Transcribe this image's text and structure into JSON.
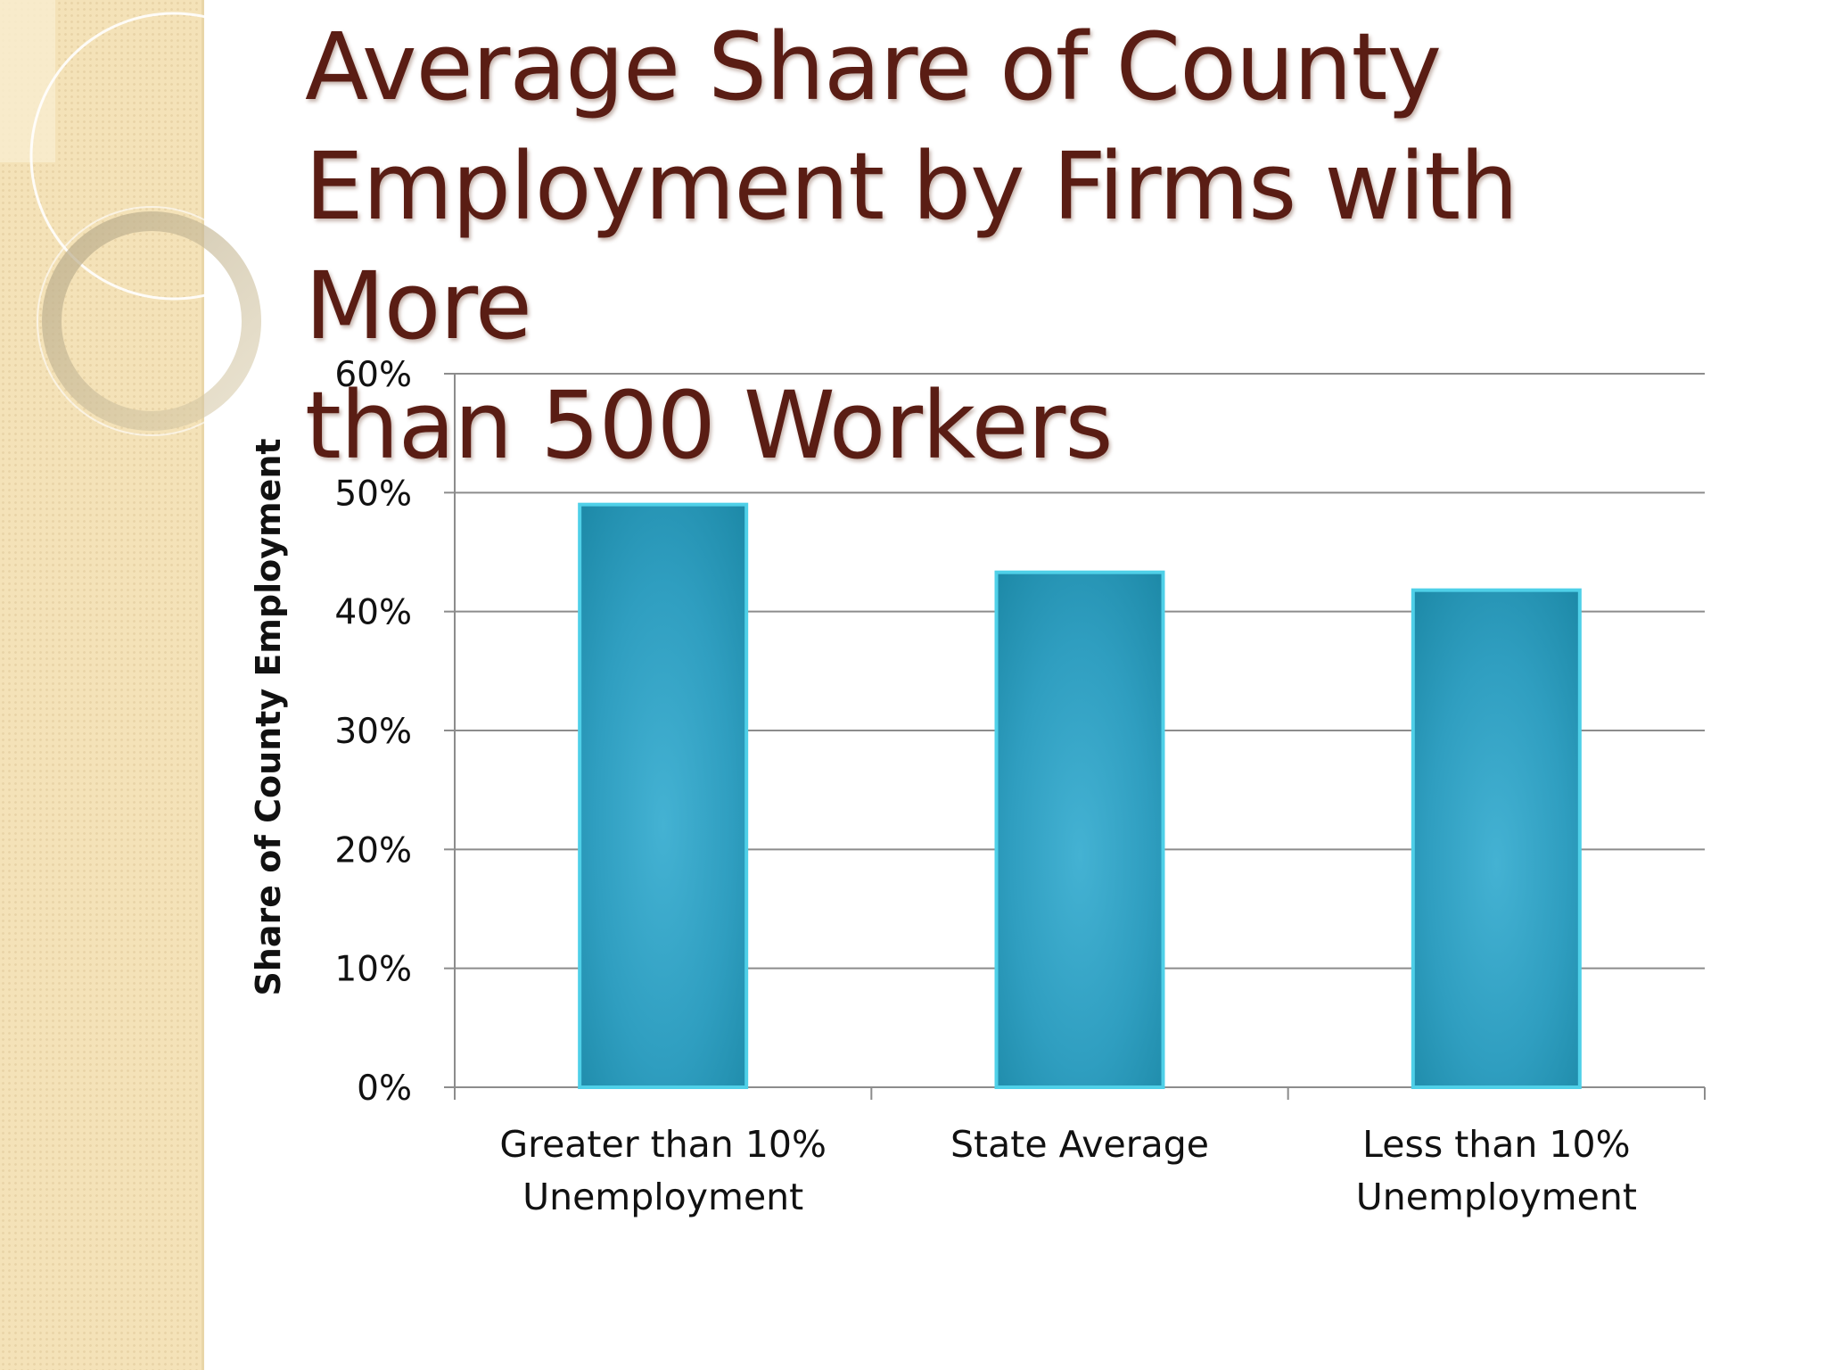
{
  "slide": {
    "title_lines": [
      "Average Share of County",
      "Employment by Firms with More",
      "than 500 Workers"
    ]
  },
  "chart_data": {
    "type": "bar",
    "categories": [
      [
        "Greater than 10%",
        "Unemployment"
      ],
      [
        "State Average"
      ],
      [
        "Less than 10%",
        "Unemployment"
      ]
    ],
    "values": [
      49,
      43.3,
      41.8
    ],
    "ylabel": "Share of County Employment",
    "xlabel": "",
    "ylim": [
      0,
      60
    ],
    "yticks": [
      0,
      10,
      20,
      30,
      40,
      50,
      60
    ],
    "ytick_labels": [
      "0%",
      "10%",
      "20%",
      "30%",
      "40%",
      "50%",
      "60%"
    ],
    "grid": true,
    "legend": "none",
    "colors": {
      "bar_fill_center": "#42aed0",
      "bar_fill_edge": "#1e8aa8",
      "bar_border": "#4fd0e8",
      "gridline": "#8c8c8c",
      "title": "#5a1d14"
    }
  }
}
